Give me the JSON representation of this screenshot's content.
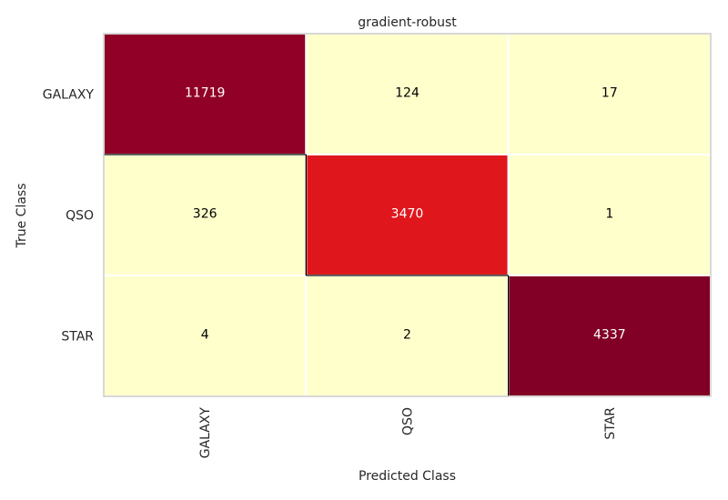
{
  "chart_data": {
    "type": "heatmap",
    "title": "gradient-robust",
    "xlabel": "Predicted Class",
    "ylabel": "True Class",
    "x_categories": [
      "GALAXY",
      "QSO",
      "STAR"
    ],
    "y_categories": [
      "GALAXY",
      "QSO",
      "STAR"
    ],
    "values": [
      [
        11719,
        124,
        17
      ],
      [
        326,
        3470,
        1
      ],
      [
        4,
        2,
        4337
      ]
    ],
    "grid": true,
    "colors": {
      "low": "#ffffcc",
      "mid_low": "#fed976",
      "mid": "#feb24c",
      "high": "#800026",
      "grid_line": "#ffffff",
      "diagonal_outline": "#000000",
      "frame": "#cccccc"
    }
  }
}
